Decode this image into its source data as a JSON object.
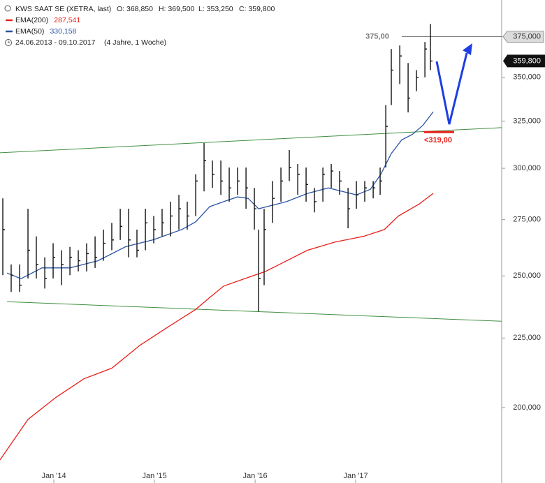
{
  "chart_data": {
    "type": "ohlc",
    "title": "KWS SAAT SE (XETRA, last)",
    "header_values": [
      "O: 368,850",
      "H: 369,500",
      "L: 353,250",
      "C: 359,800"
    ],
    "period": "24.06.2013 - 09.10.2017",
    "period_length": "(4 Jahre, 1 Woche)",
    "log_scale": true,
    "color": "#111111",
    "xlim": [
      2013.465,
      2018.451
    ],
    "xticks": [
      {
        "value": 2014,
        "label": "Jan '14"
      },
      {
        "value": 2015,
        "label": "Jan '15"
      },
      {
        "value": 2016,
        "label": "Jan '16"
      },
      {
        "value": 2017,
        "label": "Jan '17"
      }
    ],
    "ylim": [
      176000,
      399000
    ],
    "yticks": [
      {
        "value": 200000,
        "label": "200,000"
      },
      {
        "value": 225000,
        "label": "225,000"
      },
      {
        "value": 250000,
        "label": "250,000"
      },
      {
        "value": 275000,
        "label": "275,000"
      },
      {
        "value": 300000,
        "label": "300,000"
      },
      {
        "value": 325000,
        "label": "325,000"
      },
      {
        "value": 350000,
        "label": "350,000"
      },
      {
        "value": 375000,
        "label": "375,000"
      }
    ],
    "last_price": {
      "value": 359800,
      "label": "359,800"
    },
    "x": [
      2013.493,
      2013.576,
      2013.66,
      2013.743,
      2013.826,
      2013.91,
      2013.993,
      2014.076,
      2014.16,
      2014.243,
      2014.326,
      2014.41,
      2014.493,
      2014.576,
      2014.66,
      2014.743,
      2014.826,
      2014.91,
      2014.993,
      2015.076,
      2015.16,
      2015.243,
      2015.326,
      2015.41,
      2015.493,
      2015.576,
      2015.66,
      2015.743,
      2015.826,
      2015.91,
      2015.993,
      2016.035,
      2016.09,
      2016.174,
      2016.257,
      2016.34,
      2016.424,
      2016.507,
      2016.59,
      2016.674,
      2016.757,
      2016.84,
      2016.924,
      2017.007,
      2017.09,
      2017.174,
      2017.243,
      2017.299,
      2017.354,
      2017.438,
      2017.521,
      2017.604,
      2017.688,
      2017.743
    ],
    "high": [
      285100,
      254900,
      254900,
      280100,
      267300,
      258000,
      264200,
      261100,
      262600,
      261100,
      264200,
      267300,
      270400,
      273500,
      280100,
      280100,
      270400,
      280100,
      276700,
      280100,
      283500,
      286800,
      283500,
      297000,
      313100,
      304000,
      304000,
      300400,
      300400,
      300400,
      290200,
      270400,
      280100,
      293600,
      300400,
      309400,
      302200,
      300400,
      290200,
      300400,
      302200,
      298600,
      290200,
      293600,
      293600,
      293600,
      300400,
      333900,
      367200,
      369400,
      358600,
      354300,
      371600,
      383100
    ],
    "low": [
      250300,
      243300,
      243300,
      248900,
      248900,
      244700,
      248900,
      246100,
      250300,
      251900,
      251900,
      253400,
      256500,
      261100,
      265700,
      258000,
      258000,
      261100,
      264200,
      267300,
      267300,
      270400,
      270400,
      276700,
      288500,
      290200,
      286800,
      283500,
      286800,
      280100,
      270400,
      235400,
      246100,
      273500,
      283500,
      293600,
      286800,
      283500,
      278400,
      283500,
      290200,
      286800,
      271000,
      280100,
      283500,
      285100,
      286800,
      300400,
      333900,
      346000,
      329800,
      341900,
      350000,
      354300
    ],
    "close": [
      270400,
      250300,
      246100,
      261100,
      254900,
      248900,
      258000,
      254900,
      258000,
      256500,
      259600,
      258000,
      264200,
      265700,
      271900,
      265700,
      261100,
      273500,
      270400,
      273500,
      276700,
      280100,
      276700,
      293600,
      304000,
      297000,
      293600,
      290200,
      293600,
      290200,
      280100,
      248900,
      270400,
      285100,
      293600,
      300400,
      297000,
      291900,
      283500,
      297000,
      298600,
      293600,
      280100,
      286800,
      290200,
      290200,
      293600,
      322100,
      354300,
      362900,
      337900,
      350000,
      367200,
      359800
    ],
    "series": [
      {
        "name": "EMA(200)",
        "last_label": "287,541",
        "color": "#e8211c",
        "x": [
          2013.465,
          2013.743,
          2014.021,
          2014.299,
          2014.576,
          2014.854,
          2015.132,
          2015.41,
          2015.549,
          2015.688,
          2015.896,
          2016.104,
          2016.243,
          2016.521,
          2016.799,
          2017.076,
          2017.285,
          2017.424,
          2017.632,
          2017.771
        ],
        "values": [
          183000,
          196000,
          203500,
          210000,
          213800,
          222200,
          229200,
          236200,
          241000,
          245700,
          248800,
          251900,
          254900,
          261100,
          264800,
          267300,
          270400,
          276700,
          282400,
          287541
        ]
      },
      {
        "name": "EMA(50)",
        "last_label": "330,158",
        "color": "#2b55a3",
        "x": [
          2013.535,
          2013.674,
          2013.882,
          2014.16,
          2014.438,
          2014.715,
          2014.993,
          2015.271,
          2015.41,
          2015.549,
          2015.688,
          2015.826,
          2015.931,
          2016.035,
          2016.174,
          2016.313,
          2016.521,
          2016.729,
          2016.868,
          2017.007,
          2017.146,
          2017.25,
          2017.354,
          2017.458,
          2017.563,
          2017.667,
          2017.771
        ],
        "values": [
          251200,
          248800,
          253400,
          253400,
          256500,
          262700,
          265800,
          270400,
          274000,
          281100,
          283500,
          285800,
          285100,
          280100,
          281800,
          283500,
          287500,
          290200,
          288500,
          286800,
          289500,
          297000,
          307600,
          314800,
          317700,
          322600,
          330158
        ]
      }
    ],
    "trendlines": [
      {
        "color": "#3f8f3f",
        "x": [
          2013.465,
          2018.451
        ],
        "values": [
          308000,
          321400
        ]
      },
      {
        "color": "#3f8f3f",
        "x": [
          2013.535,
          2018.451
        ],
        "values": [
          239300,
          231500
        ]
      }
    ],
    "annotations": [
      {
        "label": "375,00",
        "value": 375000,
        "color": "#777777"
      },
      {
        "label": "<319,00",
        "value": 319000,
        "color": "#e8211c"
      }
    ]
  }
}
